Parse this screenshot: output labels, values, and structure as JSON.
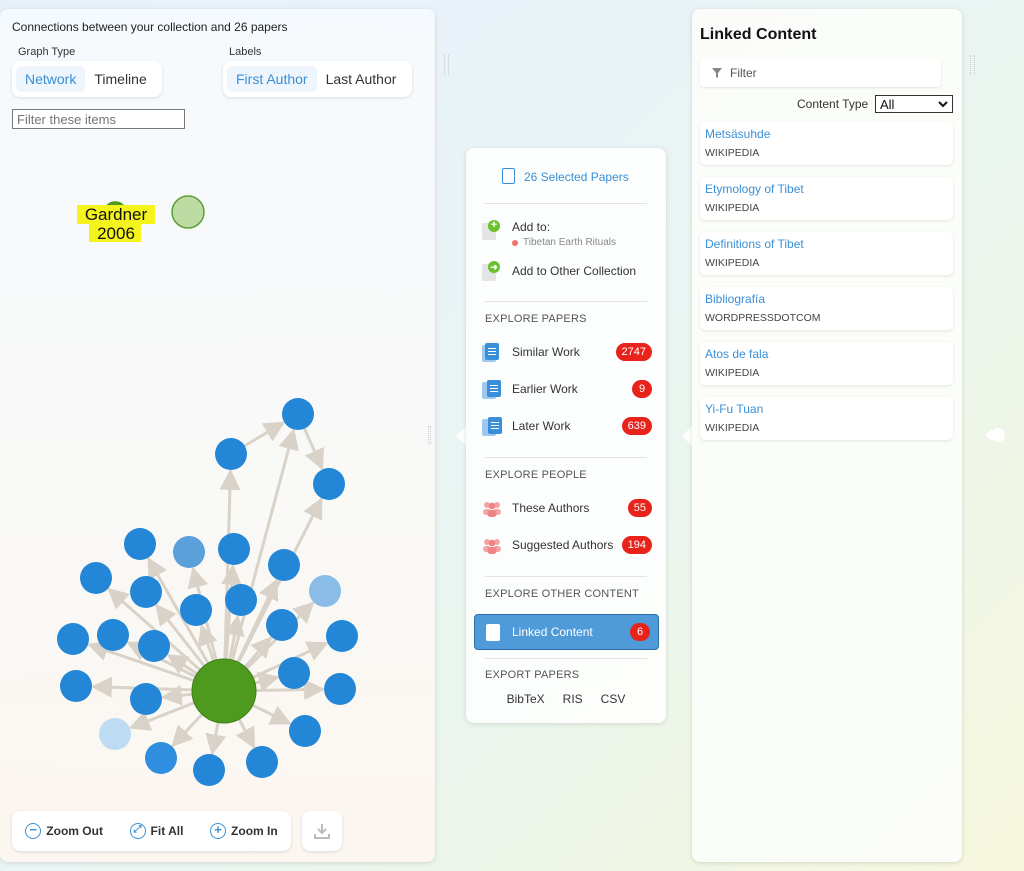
{
  "graph": {
    "title": "Connections between your collection and 26 papers",
    "graph_type_label": "Graph Type",
    "labels_label": "Labels",
    "graph_type_options": [
      "Network",
      "Timeline"
    ],
    "label_options": [
      "First Author",
      "Last Author"
    ],
    "filter_placeholder": "Filter these items",
    "highlight_label_line1": "Gardner",
    "highlight_label_line2": "2006",
    "zoom_out": "Zoom Out",
    "fit_all": "Fit All",
    "zoom_in": "Zoom In"
  },
  "menu": {
    "selected_papers": "26 Selected Papers",
    "add_to": "Add to:",
    "collection_name": "Tibetan Earth Rituals",
    "add_other": "Add to Other Collection",
    "explore_papers": "EXPLORE PAPERS",
    "similar_work": "Similar Work",
    "similar_count": "2747",
    "earlier_work": "Earlier Work",
    "earlier_count": "9",
    "later_work": "Later Work",
    "later_count": "639",
    "explore_people": "EXPLORE PEOPLE",
    "these_authors": "These Authors",
    "these_count": "55",
    "suggested_authors": "Suggested Authors",
    "suggested_count": "194",
    "explore_other": "EXPLORE OTHER CONTENT",
    "linked_content": "Linked Content",
    "linked_count": "6",
    "export_papers": "EXPORT PAPERS",
    "export_bibtex": "BibTeX",
    "export_ris": "RIS",
    "export_csv": "CSV"
  },
  "linked": {
    "title": "Linked Content",
    "filter_placeholder": "Filter",
    "content_type_label": "Content Type",
    "content_type_value": "All",
    "items": [
      {
        "title": "Metsäsuhde",
        "source": "WIKIPEDIA"
      },
      {
        "title": "Etymology of Tibet",
        "source": "WIKIPEDIA"
      },
      {
        "title": "Definitions of Tibet",
        "source": "WIKIPEDIA"
      },
      {
        "title": "Bibliografía",
        "source": "WORDPRESSDOTCOM"
      },
      {
        "title": "Atos de fala",
        "source": "WIKIPEDIA"
      },
      {
        "title": "Yi-Fu Tuan",
        "source": "WIKIPEDIA"
      }
    ]
  },
  "colors": {
    "accent": "#3a8fd6",
    "center_node": "#4e9a1f",
    "node": "#2386d6",
    "badge": "#e8231c",
    "highlight": "#f4f41c"
  }
}
